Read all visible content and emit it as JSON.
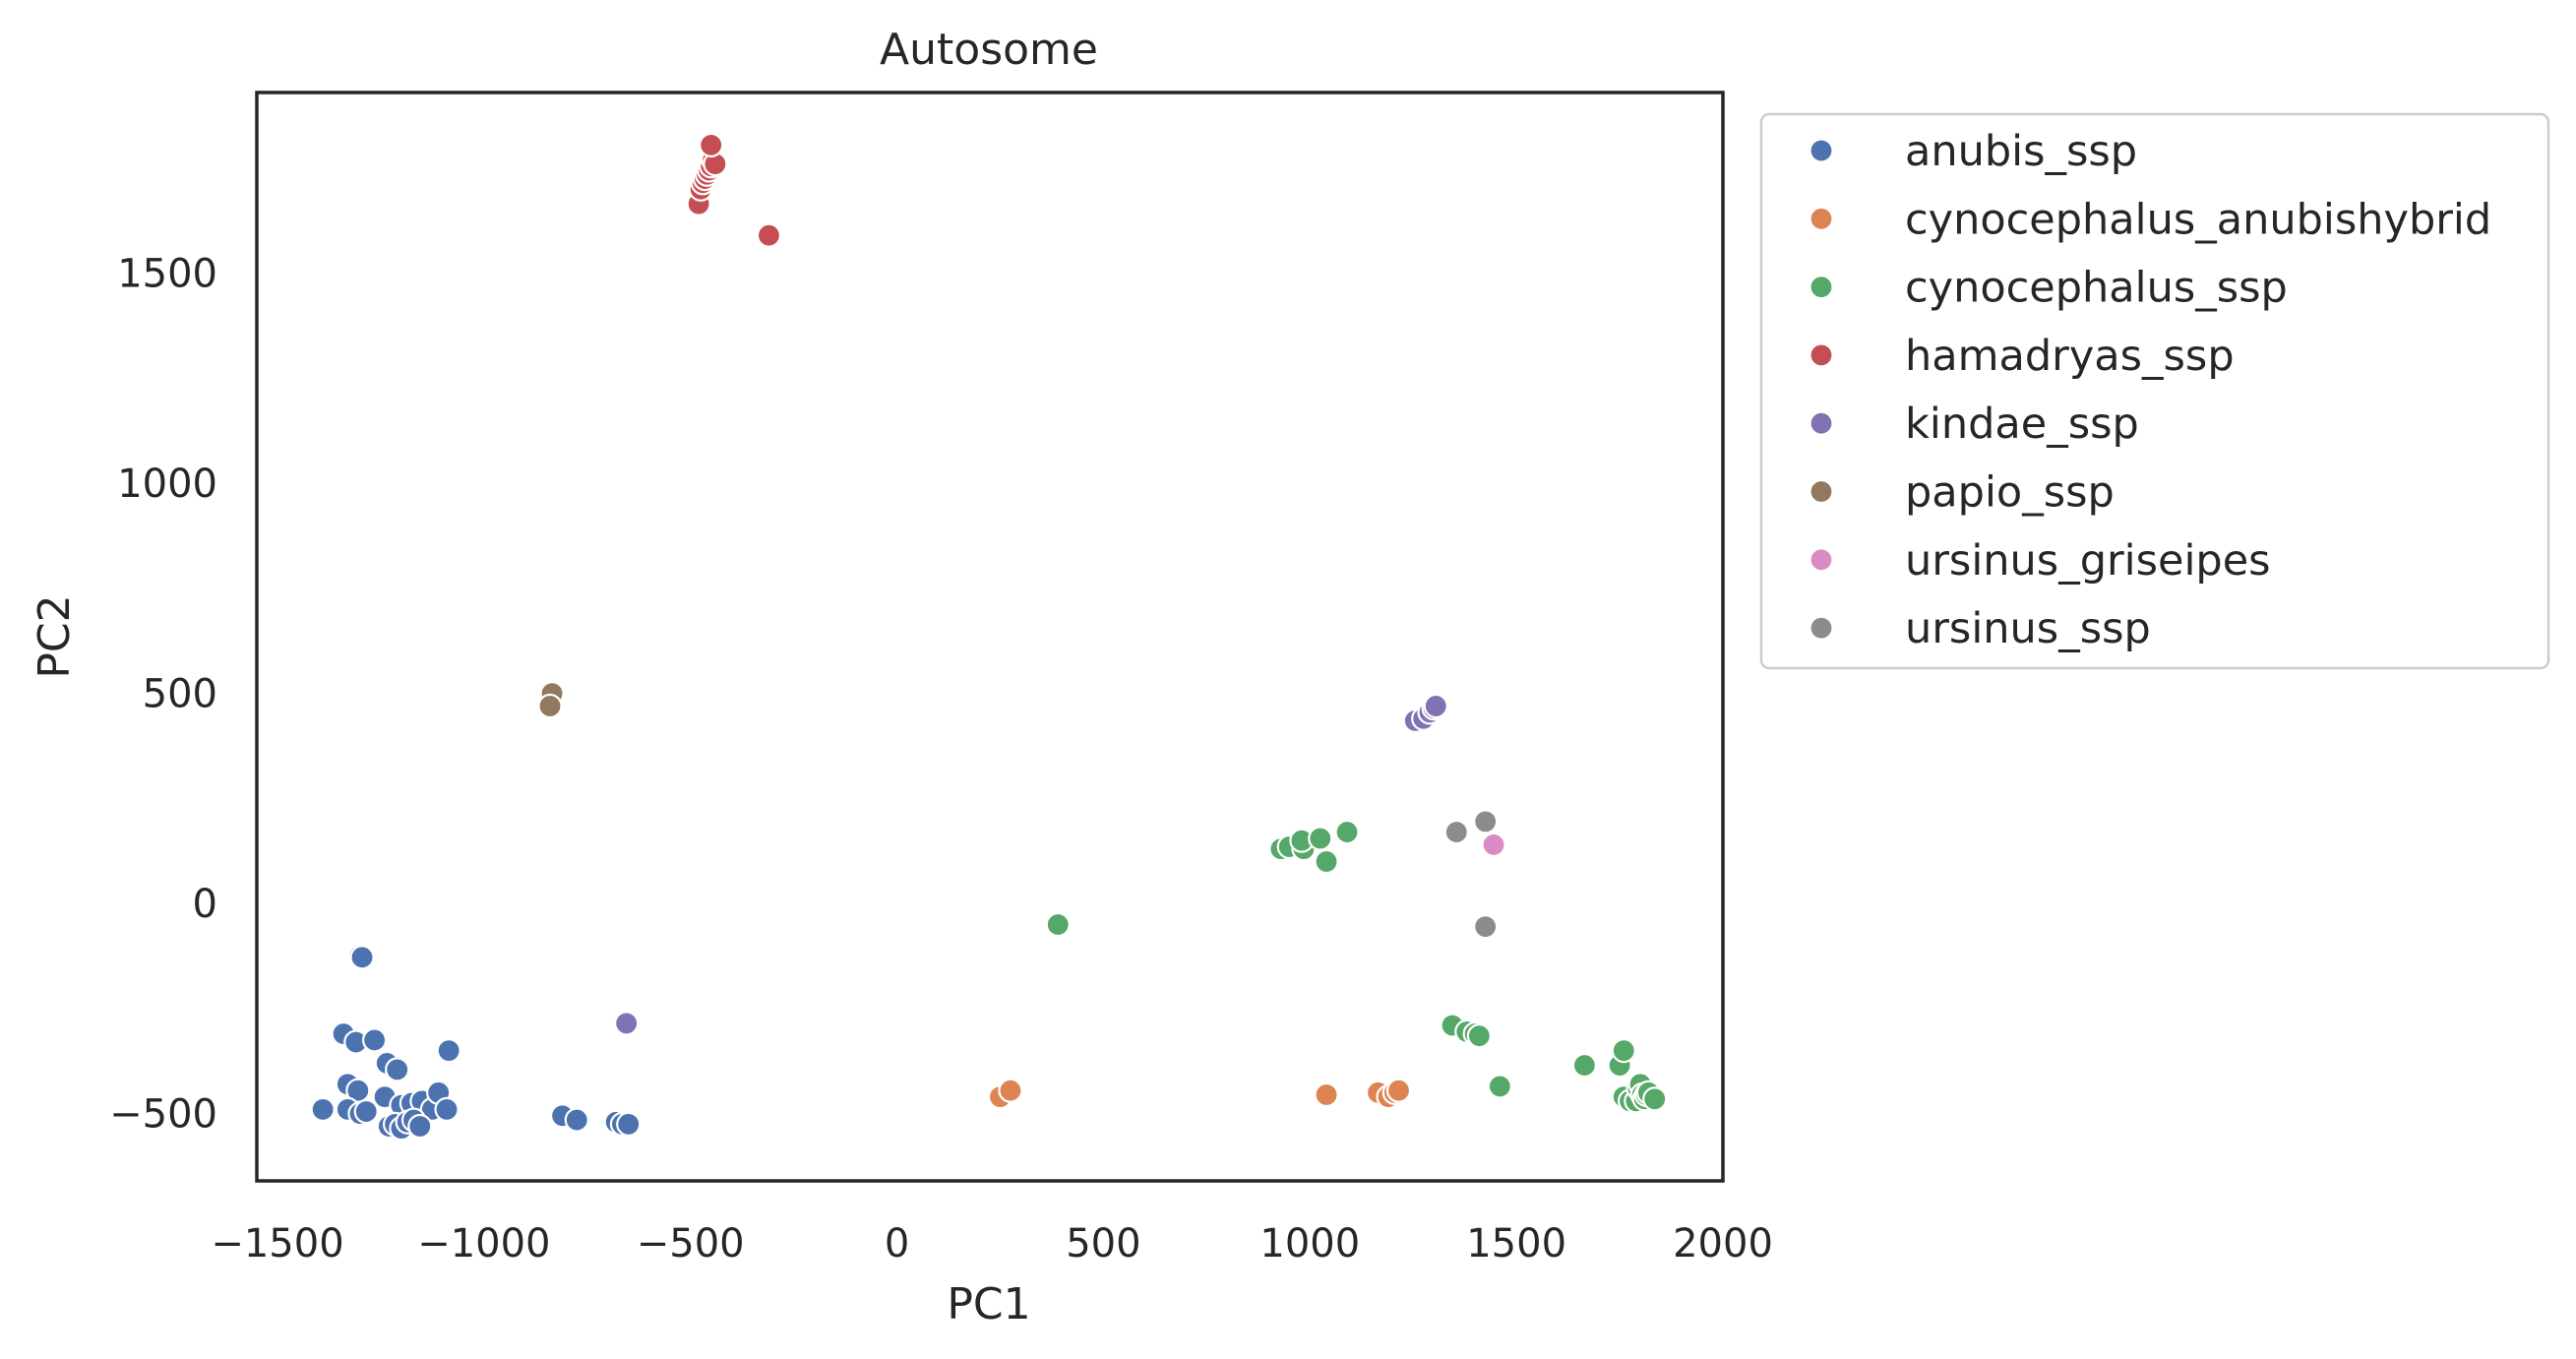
{
  "chart_data": {
    "type": "scatter",
    "title": "Autosome",
    "xlabel": "PC1",
    "ylabel": "PC2",
    "xlim": [
      -1550,
      2000
    ],
    "ylim": [
      -660,
      1930
    ],
    "xticks": [
      -1500,
      -1000,
      -500,
      0,
      500,
      1000,
      1500,
      2000
    ],
    "xtick_labels": [
      "−1500",
      "−1000",
      "−500",
      "0",
      "500",
      "1000",
      "1500",
      "2000"
    ],
    "yticks": [
      -500,
      0,
      500,
      1000,
      1500
    ],
    "ytick_labels": [
      "−500",
      "0",
      "500",
      "1000",
      "1500"
    ],
    "grid": false,
    "legend_position": "outside-right",
    "series": [
      {
        "name": "anubis_ssp",
        "color": "#4c72b0",
        "points": [
          [
            -1300,
            -125
          ],
          [
            -1295,
            -128
          ],
          [
            -1340,
            -310
          ],
          [
            -1310,
            -330
          ],
          [
            -1265,
            -325
          ],
          [
            -1235,
            -380
          ],
          [
            -1210,
            -395
          ],
          [
            -1085,
            -350
          ],
          [
            -1390,
            -490
          ],
          [
            -1330,
            -430
          ],
          [
            -1305,
            -445
          ],
          [
            -1330,
            -490
          ],
          [
            -1300,
            -500
          ],
          [
            -1285,
            -495
          ],
          [
            -1240,
            -460
          ],
          [
            -1200,
            -480
          ],
          [
            -1175,
            -475
          ],
          [
            -1150,
            -470
          ],
          [
            -1125,
            -490
          ],
          [
            -1110,
            -450
          ],
          [
            -1090,
            -490
          ],
          [
            -1230,
            -530
          ],
          [
            -1215,
            -525
          ],
          [
            -1200,
            -535
          ],
          [
            -1185,
            -520
          ],
          [
            -1170,
            -515
          ],
          [
            -1155,
            -530
          ],
          [
            -810,
            -505
          ],
          [
            -775,
            -515
          ],
          [
            -680,
            -520
          ],
          [
            -665,
            -525
          ],
          [
            -650,
            -525
          ]
        ]
      },
      {
        "name": "cynocephalus_anubishybrid",
        "color": "#dd8452",
        "points": [
          [
            250,
            -460
          ],
          [
            275,
            -445
          ],
          [
            1040,
            -455
          ],
          [
            1165,
            -450
          ],
          [
            1190,
            -460
          ],
          [
            1205,
            -450
          ],
          [
            1215,
            -445
          ]
        ]
      },
      {
        "name": "cynocephalus_ssp",
        "color": "#55a868",
        "points": [
          [
            390,
            -50
          ],
          [
            930,
            130
          ],
          [
            950,
            135
          ],
          [
            985,
            130
          ],
          [
            980,
            150
          ],
          [
            1025,
            155
          ],
          [
            1040,
            100
          ],
          [
            1090,
            170
          ],
          [
            1345,
            -290
          ],
          [
            1380,
            -305
          ],
          [
            1400,
            -310
          ],
          [
            1410,
            -315
          ],
          [
            1460,
            -435
          ],
          [
            1665,
            -385
          ],
          [
            1750,
            -385
          ],
          [
            1760,
            -350
          ],
          [
            1760,
            -460
          ],
          [
            1775,
            -470
          ],
          [
            1790,
            -470
          ],
          [
            1795,
            -440
          ],
          [
            1800,
            -430
          ],
          [
            1805,
            -455
          ],
          [
            1810,
            -465
          ],
          [
            1815,
            -455
          ],
          [
            1820,
            -450
          ],
          [
            1835,
            -465
          ]
        ]
      },
      {
        "name": "hamadryas_ssp",
        "color": "#c44e52",
        "points": [
          [
            -480,
            1665
          ],
          [
            -475,
            1700
          ],
          [
            -470,
            1715
          ],
          [
            -465,
            1725
          ],
          [
            -460,
            1735
          ],
          [
            -455,
            1745
          ],
          [
            -450,
            1755
          ],
          [
            -445,
            1770
          ],
          [
            -440,
            1760
          ],
          [
            -450,
            1805
          ],
          [
            -310,
            1590
          ]
        ]
      },
      {
        "name": "kindae_ssp",
        "color": "#8172b3",
        "points": [
          [
            -655,
            -285
          ],
          [
            1255,
            435
          ],
          [
            1275,
            440
          ],
          [
            1290,
            455
          ],
          [
            1300,
            465
          ],
          [
            1305,
            470
          ]
        ]
      },
      {
        "name": "papio_ssp",
        "color": "#937860",
        "points": [
          [
            -835,
            500
          ],
          [
            -840,
            470
          ]
        ]
      },
      {
        "name": "ursinus_griseipes",
        "color": "#da8bc3",
        "points": [
          [
            1445,
            140
          ]
        ]
      },
      {
        "name": "ursinus_ssp",
        "color": "#8c8c8c",
        "points": [
          [
            1355,
            170
          ],
          [
            1425,
            195
          ],
          [
            1425,
            -55
          ]
        ]
      }
    ]
  }
}
